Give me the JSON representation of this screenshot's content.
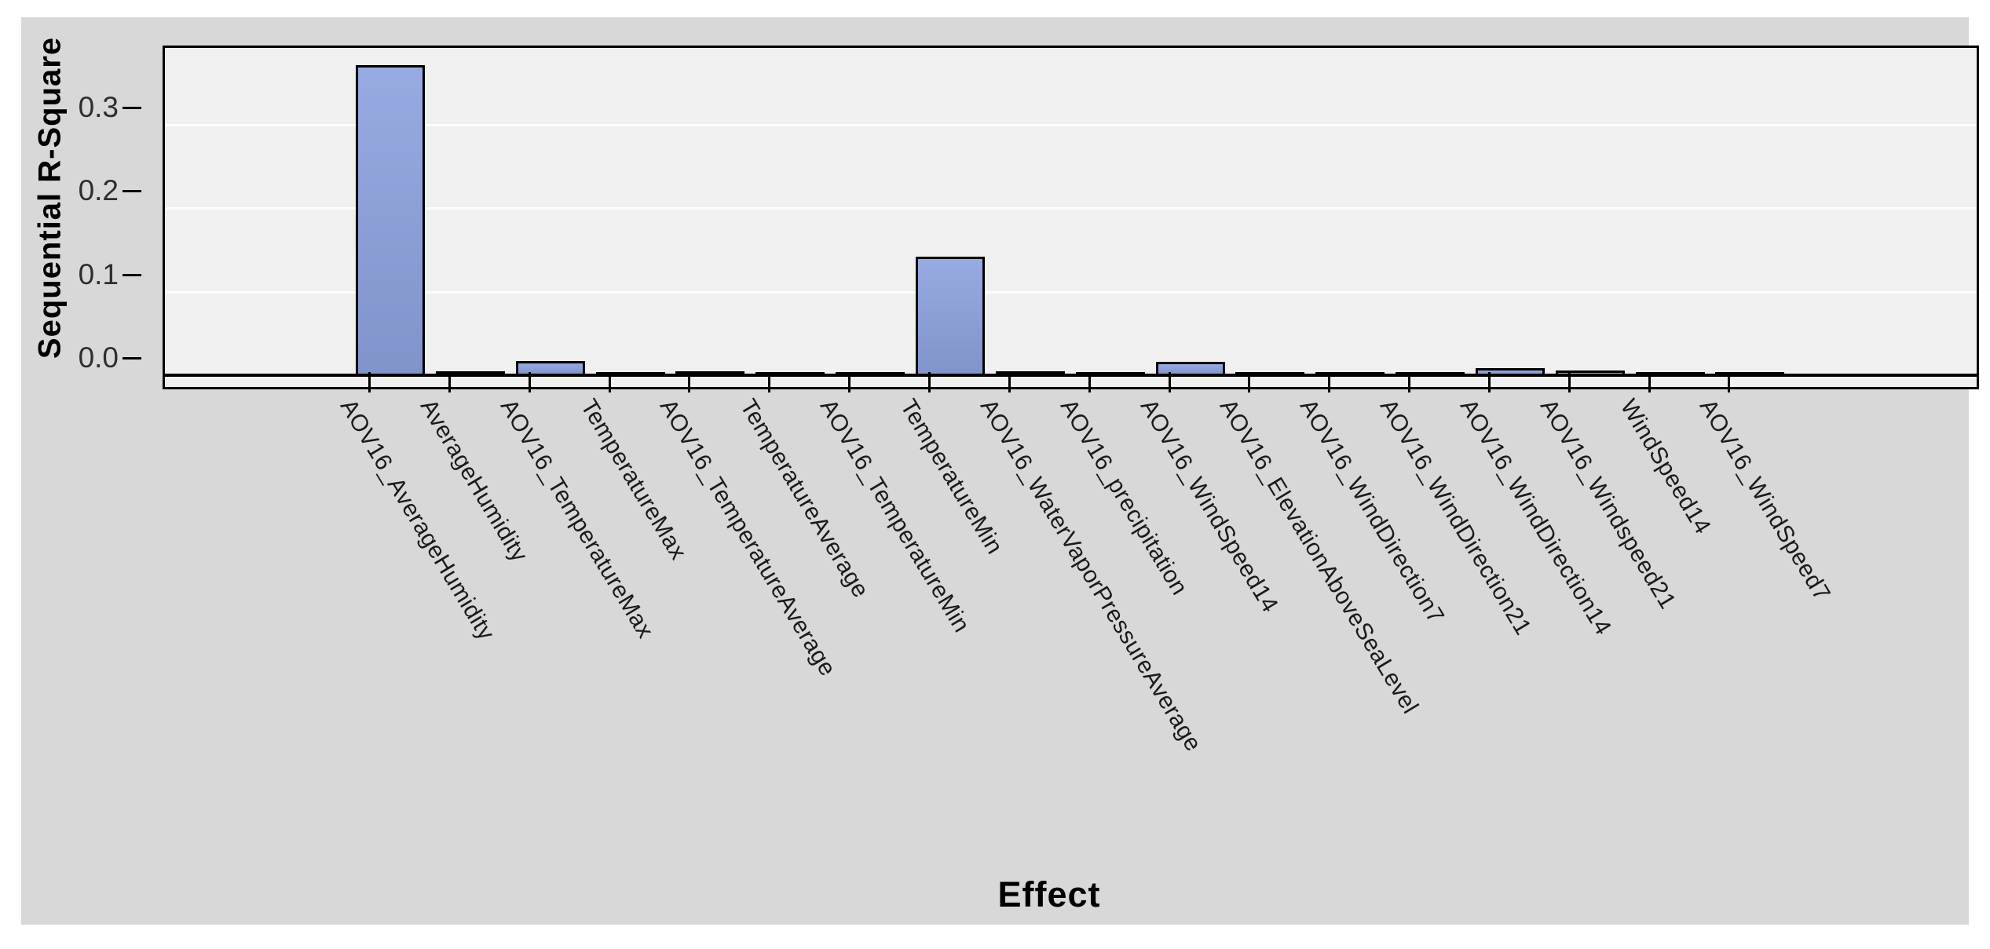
{
  "chart_data": {
    "type": "bar",
    "title": "",
    "xlabel": "Effect",
    "ylabel": "Sequential R-Square",
    "categories": [
      "AOV16_AverageHumidity",
      "AverageHumidity",
      "AOV16_TemperatureMax",
      "TemperatureMax",
      "AOV16_TemperatureAverage",
      "TemperatureAverage",
      "AOV16_TemperatureMin",
      "TemperatureMin",
      "AOV16_WaterVaporPressureAverage",
      "AOV16_precipitation",
      "AOV16_WindSpeed14",
      "AOV16_ElevationAboveSeaLevel",
      "AOV16_WindDirection7",
      "AOV16_WindDirection21",
      "AOV16_WindDirection14",
      "AOV16_Windspeed21",
      "WindSpeed14",
      "AOV16_WindSpeed7"
    ],
    "values": [
      0.371,
      0.005,
      0.017,
      0.003,
      0.005,
      0.003,
      0.003,
      0.142,
      0.005,
      0.004,
      0.016,
      0.003,
      0.003,
      0.003,
      0.008,
      0.006,
      0.003,
      0.003
    ],
    "ylim": [
      0,
      0.4
    ],
    "yticks": [
      0.0,
      0.1,
      0.2,
      0.3
    ],
    "ytick_labels": [
      "0.0",
      "0.1",
      "0.2",
      "0.3"
    ],
    "legend": "none",
    "grid": "horizontal",
    "x_label_rotation_deg": 59
  },
  "colors": {
    "page_bg": "#ffffff",
    "panel_bg": "#d8d8d8",
    "plot_bg": "#f0f0f0",
    "gridline": "#fdfdfd",
    "bar_gradient_top": "#97abe2",
    "bar_gradient_bottom": "#8094cb",
    "outline": "#000000",
    "tick_label": "#2e2e2e"
  }
}
